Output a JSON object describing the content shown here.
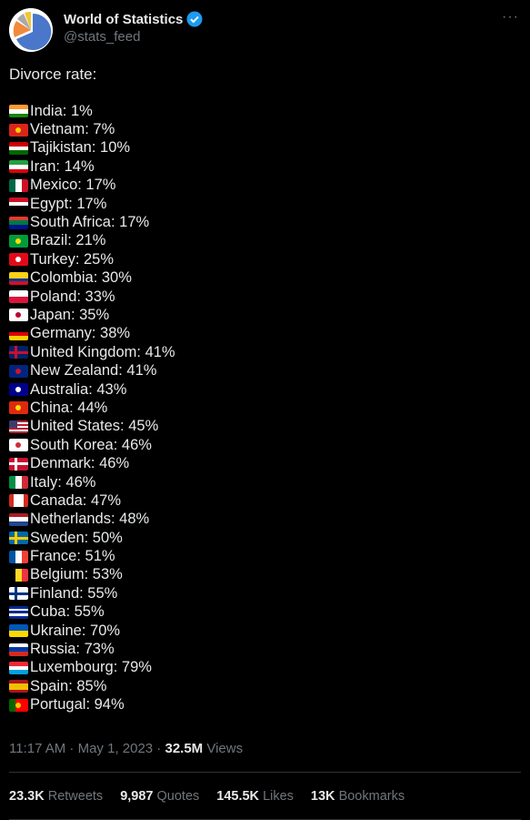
{
  "author": {
    "name": "World of Statistics",
    "handle": "@stats_feed"
  },
  "tweet": {
    "heading": "Divorce rate:",
    "lines": [
      "India: 1%",
      "Vietnam: 7%",
      "Tajikistan: 10%",
      "Iran: 14%",
      "Mexico: 17%",
      "Egypt: 17%",
      "South Africa: 17%",
      "Brazil: 21%",
      "Turkey: 25%",
      "Colombia: 30%",
      "Poland: 33%",
      "Japan: 35%",
      "Germany: 38%",
      "United Kingdom: 41%",
      "New Zealand: 41%",
      "Australia: 43%",
      "China: 44%",
      "United States: 45%",
      "South Korea: 46%",
      "Denmark: 46%",
      "Italy: 46%",
      "Canada: 47%",
      "Netherlands: 48%",
      "Sweden: 50%",
      "France: 51%",
      "Belgium: 53%",
      "Finland: 55%",
      "Cuba: 55%",
      "Ukraine: 70%",
      "Russia: 73%",
      "Luxembourg: 79%",
      "Spain: 85%",
      "Portugal: 94%"
    ]
  },
  "meta": {
    "time": "11:17 AM · May 1, 2023 ·",
    "views": "32.5M",
    "views_label": "Views"
  },
  "stats": [
    {
      "count": "23.3K",
      "label": "Retweets"
    },
    {
      "count": "9,987",
      "label": "Quotes"
    },
    {
      "count": "145.5K",
      "label": "Likes"
    },
    {
      "count": "13K",
      "label": "Bookmarks"
    }
  ]
}
